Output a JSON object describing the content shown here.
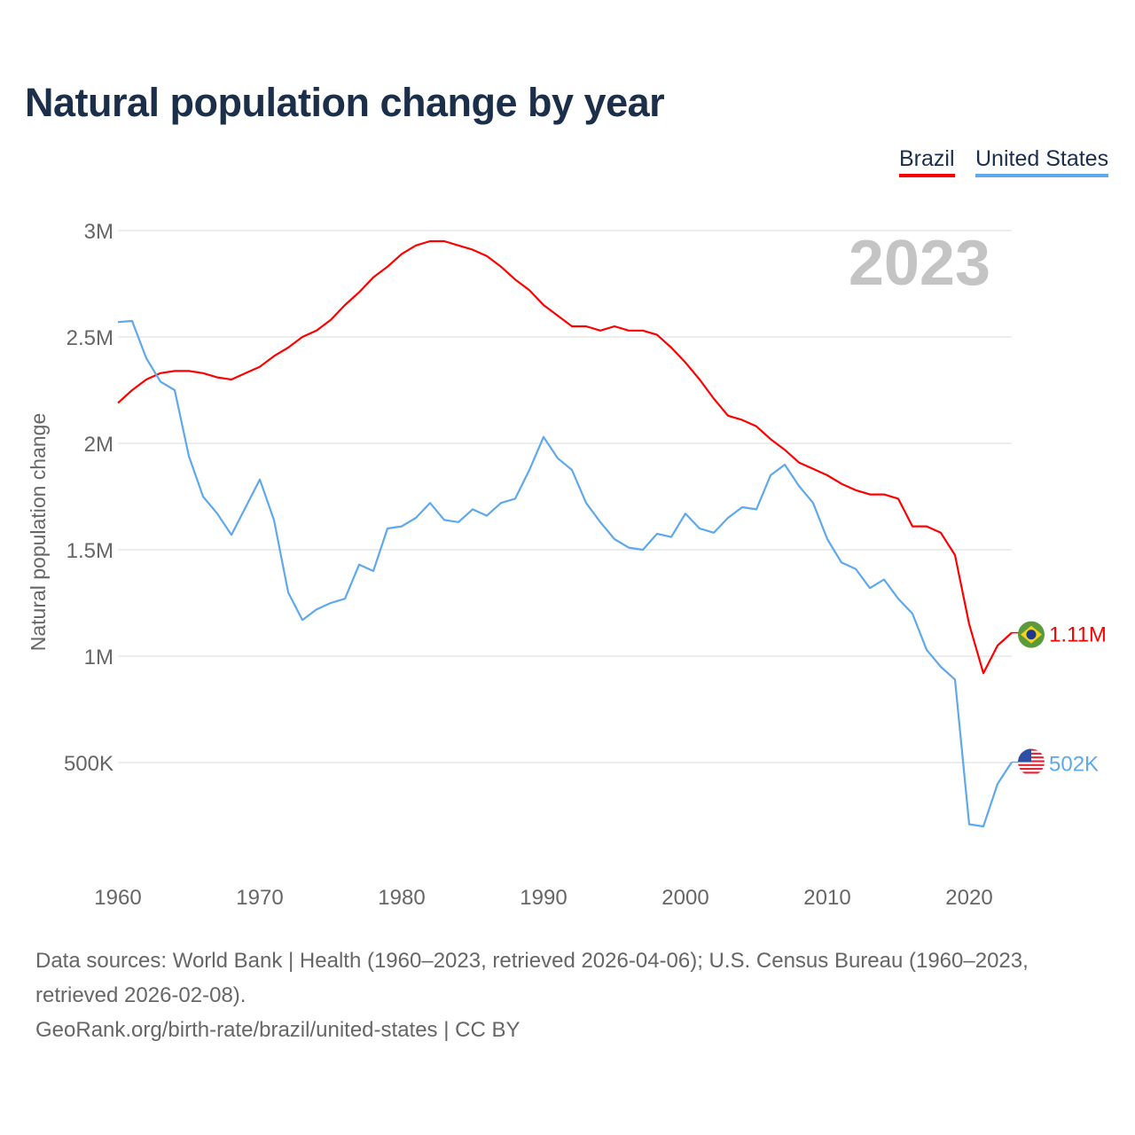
{
  "title": "Natural population change by year",
  "legend": [
    {
      "name": "Brazil",
      "color": "#ff0000"
    },
    {
      "name": "United States",
      "color": "#5ea8ec"
    }
  ],
  "year_label": "2023",
  "sources": {
    "line1": "Data sources: World Bank | Health (1960–2023, retrieved 2026-04-06); U.S. Census Bureau (1960–2023, retrieved 2026-02-08).",
    "line2": "GeoRank.org/birth-rate/brazil/united-states | CC BY"
  },
  "chart_data": {
    "type": "line",
    "title": "Natural population change by year",
    "xlabel": "",
    "ylabel": "Natural population change",
    "xlim": [
      1960,
      2023
    ],
    "ylim": [
      0,
      3000000
    ],
    "x_ticks": [
      1960,
      1970,
      1980,
      1990,
      2000,
      2010,
      2020
    ],
    "y_ticks": [
      {
        "v": 500000,
        "label": "500K"
      },
      {
        "v": 1000000,
        "label": "1M"
      },
      {
        "v": 1500000,
        "label": "1.5M"
      },
      {
        "v": 2000000,
        "label": "2M"
      },
      {
        "v": 2500000,
        "label": "2.5M"
      },
      {
        "v": 3000000,
        "label": "3M"
      }
    ],
    "grid": true,
    "legend_position": "top-right",
    "x_start": 1960,
    "series": [
      {
        "name": "Brazil",
        "color": "#ff0000",
        "end_label": "1.11M",
        "flag": "brazil-flag",
        "values": [
          2.19,
          2.25,
          2.3,
          2.33,
          2.34,
          2.34,
          2.33,
          2.31,
          2.3,
          2.33,
          2.36,
          2.41,
          2.45,
          2.5,
          2.53,
          2.58,
          2.65,
          2.71,
          2.78,
          2.83,
          2.89,
          2.93,
          2.95,
          2.95,
          2.93,
          2.91,
          2.88,
          2.83,
          2.77,
          2.72,
          2.65,
          2.6,
          2.55,
          2.55,
          2.53,
          2.55,
          2.53,
          2.53,
          2.51,
          2.45,
          2.38,
          2.3,
          2.21,
          2.13,
          2.11,
          2.08,
          2.02,
          1.97,
          1.91,
          1.88,
          1.85,
          1.81,
          1.78,
          1.76,
          1.76,
          1.74,
          1.61,
          1.61,
          1.58,
          1.475,
          1.15,
          0.92,
          1.05,
          1.11
        ]
      },
      {
        "name": "United States",
        "color": "#5ea8ec",
        "end_label": "502K",
        "flag": "us-flag",
        "values": [
          2.57,
          2.575,
          2.4,
          2.29,
          2.25,
          1.94,
          1.75,
          1.67,
          1.57,
          1.7,
          1.83,
          1.64,
          1.3,
          1.17,
          1.22,
          1.25,
          1.27,
          1.43,
          1.4,
          1.6,
          1.61,
          1.65,
          1.72,
          1.64,
          1.63,
          1.69,
          1.66,
          1.72,
          1.74,
          1.875,
          2.03,
          1.93,
          1.875,
          1.72,
          1.63,
          1.55,
          1.51,
          1.5,
          1.575,
          1.56,
          1.67,
          1.6,
          1.58,
          1.65,
          1.7,
          1.69,
          1.85,
          1.9,
          1.8,
          1.72,
          1.55,
          1.44,
          1.41,
          1.32,
          1.36,
          1.27,
          1.2,
          1.03,
          0.95,
          0.89,
          0.21,
          0.2,
          0.4,
          0.502
        ]
      }
    ],
    "value_unit": "millions"
  }
}
